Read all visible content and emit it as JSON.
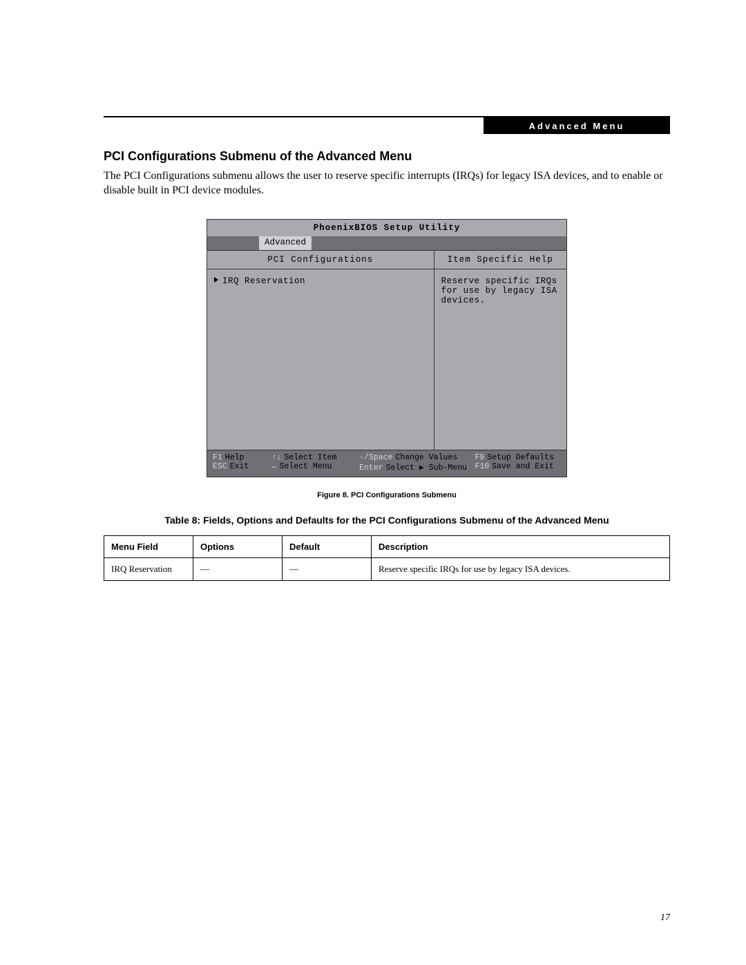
{
  "header": {
    "banner": "Advanced Menu"
  },
  "section": {
    "title": "PCI Configurations Submenu of the Advanced Menu",
    "body": "The PCI Configurations submenu allows the user to reserve specific interrupts (IRQs) for legacy ISA devices, and to enable or disable built in PCI device modules."
  },
  "bios": {
    "title": "PhoenixBIOS Setup Utility",
    "tab": "Advanced",
    "left_header": "PCI Configurations",
    "left_item": "IRQ Reservation",
    "right_header": "Item Specific Help",
    "right_text": "Reserve specific IRQs for use by legacy ISA devices.",
    "footer": {
      "r1": {
        "k1": "F1",
        "l1": "Help",
        "k2": "↑↓",
        "l2": "Select Item",
        "k3": "-/Space",
        "l3": "Change Values",
        "k4": "F9",
        "l4": "Setup Defaults"
      },
      "r2": {
        "k1": "ESC",
        "l1": "Exit",
        "k2": "↔",
        "l2": "Select Menu",
        "k3": "Enter",
        "l3": "Select ▶ Sub-Menu",
        "k4": "F10",
        "l4": "Save and Exit"
      }
    },
    "colors": {
      "panel_bg": "#a9a9b0",
      "bar_bg": "#6f6f75",
      "tab_bg": "#d0d2d6",
      "border": "#333333",
      "footer_text": "#ffffff",
      "footer_key": "#d6d6de"
    }
  },
  "figure_caption": "Figure 8.  PCI Configurations Submenu",
  "table": {
    "title": "Table 8: Fields, Options and Defaults for the PCI Configurations Submenu of the Advanced Menu",
    "columns": [
      "Menu Field",
      "Options",
      "Default",
      "Description"
    ],
    "rows": [
      [
        "IRQ Reservation",
        "—",
        "—",
        "Reserve specific IRQs for use by legacy ISA devices."
      ]
    ]
  },
  "page_number": "17"
}
